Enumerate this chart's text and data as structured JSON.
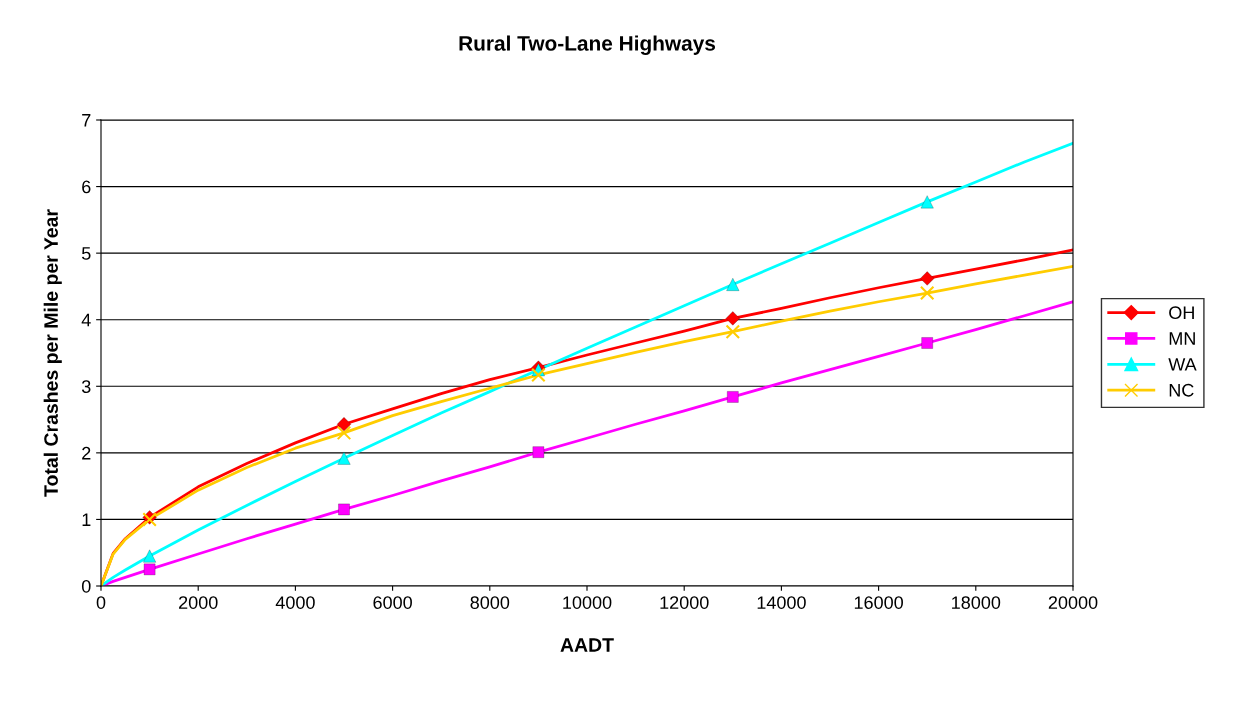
{
  "chart_data": {
    "type": "line",
    "title": "Rural Two-Lane Highways",
    "xlabel": "AADT",
    "ylabel": "Total Crashes per Mile per Year",
    "x": [
      0,
      250,
      500,
      1000,
      2000,
      3000,
      4000,
      5000,
      6000,
      7000,
      8000,
      9000,
      10000,
      11000,
      12000,
      13000,
      14000,
      15000,
      16000,
      17000,
      18000,
      19000,
      20000
    ],
    "series": [
      {
        "color": "#ff0000",
        "marker": "none",
        "values": [
          0,
          0.49,
          0.71,
          1.03,
          1.49,
          1.84,
          2.15,
          2.43,
          2.66,
          2.89,
          3.1,
          3.28,
          3.47,
          3.65,
          3.83,
          4.02,
          4.17,
          4.33,
          4.48,
          4.62,
          4.76,
          4.9,
          5.05
        ]
      },
      {
        "color": "#ff00ff",
        "marker": "none",
        "values": [
          0,
          0.07,
          0.13,
          0.25,
          0.48,
          0.71,
          0.93,
          1.15,
          1.36,
          1.58,
          1.79,
          2.01,
          2.22,
          2.43,
          2.63,
          2.84,
          3.05,
          3.25,
          3.45,
          3.65,
          3.85,
          4.06,
          4.27
        ]
      },
      {
        "color": "#00ffff",
        "marker": "none",
        "values": [
          0,
          0.13,
          0.24,
          0.45,
          0.84,
          1.21,
          1.57,
          1.92,
          2.26,
          2.6,
          2.92,
          3.25,
          3.57,
          3.89,
          4.21,
          4.53,
          4.84,
          5.15,
          5.46,
          5.77,
          6.07,
          6.37,
          6.65
        ]
      },
      {
        "color": "#ffcc00",
        "marker": "none",
        "values": [
          0,
          0.48,
          0.7,
          1.0,
          1.44,
          1.78,
          2.07,
          2.3,
          2.56,
          2.77,
          2.97,
          3.17,
          3.34,
          3.51,
          3.67,
          3.82,
          3.98,
          4.13,
          4.27,
          4.4,
          4.54,
          4.67,
          4.8
        ]
      },
      {
        "type": "scatter",
        "name": "OH",
        "color": "#ff0000",
        "marker": "diamond",
        "x": [
          1000,
          5000,
          9000,
          13000,
          17000
        ],
        "values": [
          1.03,
          2.43,
          3.28,
          4.02,
          4.62
        ]
      },
      {
        "type": "scatter",
        "name": "MN",
        "color": "#ff00ff",
        "marker": "square",
        "x": [
          1000,
          5000,
          9000,
          13000,
          17000
        ],
        "values": [
          0.25,
          1.15,
          2.01,
          2.84,
          3.65
        ]
      },
      {
        "type": "scatter",
        "name": "WA",
        "color": "#00ffff",
        "marker": "triangle",
        "x": [
          1000,
          5000,
          9000,
          13000,
          17000
        ],
        "values": [
          0.45,
          1.92,
          3.25,
          4.53,
          5.77
        ]
      },
      {
        "type": "scatter",
        "name": "NC",
        "color": "#ffcc00",
        "marker": "cross",
        "x": [
          1000,
          5000,
          9000,
          13000,
          17000
        ],
        "values": [
          1.0,
          2.3,
          3.17,
          3.82,
          4.4
        ]
      }
    ],
    "xlim": [
      0,
      20000
    ],
    "xticks": [
      0,
      2000,
      4000,
      6000,
      8000,
      10000,
      12000,
      14000,
      16000,
      18000,
      20000
    ],
    "ylim": [
      0,
      7
    ],
    "yticks": [
      0,
      1,
      2,
      3,
      4,
      5,
      6,
      7
    ],
    "grid": "y",
    "legend": "right"
  }
}
